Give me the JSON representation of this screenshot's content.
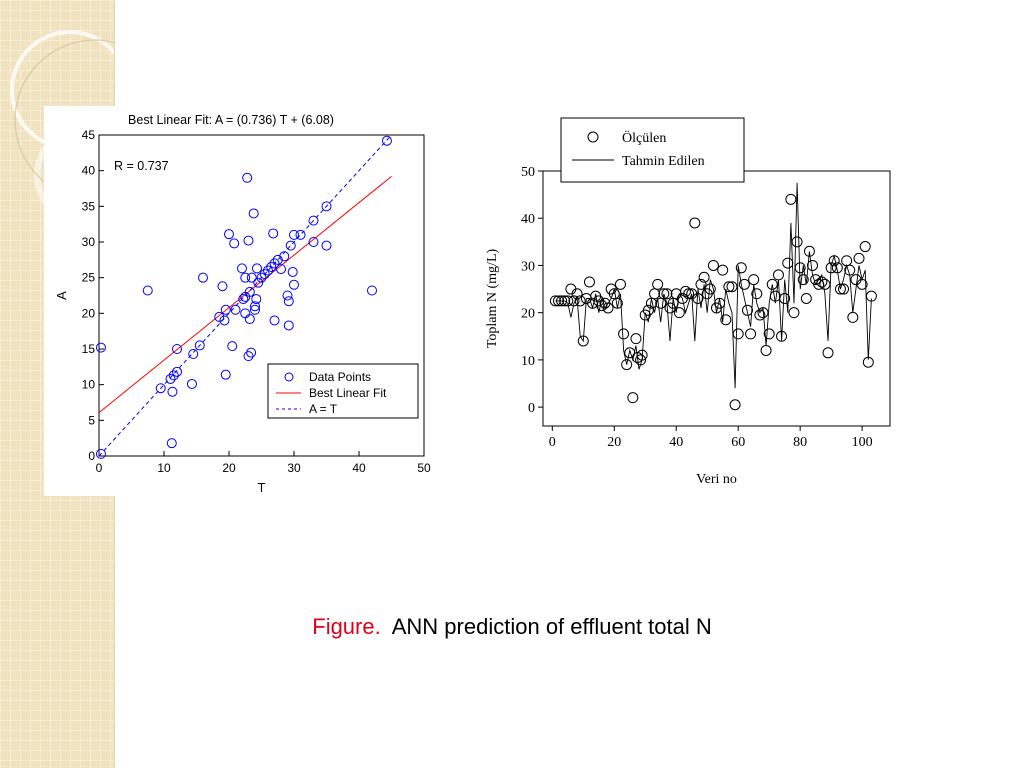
{
  "caption": {
    "label": "Figure.",
    "text": "ANN prediction of effluent total N",
    "label_color": "#e0001a"
  },
  "chart_data": [
    {
      "type": "scatter",
      "title": "Best Linear Fit:  A = (0.736) T + (6.08)",
      "annotation": "R = 0.737",
      "xlabel": "T",
      "ylabel": "A",
      "xlim": [
        0,
        50
      ],
      "ylim": [
        0,
        45
      ],
      "xticks": [
        0,
        10,
        20,
        30,
        40,
        50
      ],
      "yticks": [
        0,
        5,
        10,
        15,
        20,
        25,
        30,
        35,
        40,
        45
      ],
      "grid": false,
      "legend_position": "bottom-right",
      "colors": {
        "points": "#0000ff",
        "fit": "#ff0000",
        "identity": "#0000ff"
      },
      "series": [
        {
          "name": "Data Points",
          "kind": "scatter",
          "points": [
            [
              0.3,
              0.3
            ],
            [
              0.3,
              15.2
            ],
            [
              7.5,
              23.2
            ],
            [
              9.5,
              9.5
            ],
            [
              11,
              10.8
            ],
            [
              11.5,
              11.3
            ],
            [
              11.3,
              9
            ],
            [
              11.2,
              1.8
            ],
            [
              12,
              15
            ],
            [
              12,
              11.8
            ],
            [
              14.5,
              14.3
            ],
            [
              14.3,
              10.1
            ],
            [
              15.5,
              15.5
            ],
            [
              16,
              25
            ],
            [
              18.5,
              19.5
            ],
            [
              19,
              23.8
            ],
            [
              19.5,
              11.4
            ],
            [
              19.5,
              20.5
            ],
            [
              19.3,
              19
            ],
            [
              20,
              31.1
            ],
            [
              20.5,
              15.4
            ],
            [
              20.8,
              29.8
            ],
            [
              21,
              20.5
            ],
            [
              22,
              26.3
            ],
            [
              22.2,
              22
            ],
            [
              22.5,
              25
            ],
            [
              22.5,
              22.3
            ],
            [
              22.5,
              20
            ],
            [
              22.8,
              39
            ],
            [
              23,
              30.2
            ],
            [
              23,
              14
            ],
            [
              23.2,
              19.2
            ],
            [
              23.4,
              14.5
            ],
            [
              23.2,
              23
            ],
            [
              23.5,
              25
            ],
            [
              23.8,
              34
            ],
            [
              24,
              20.5
            ],
            [
              24,
              21
            ],
            [
              24.2,
              22
            ],
            [
              24.3,
              26.3
            ],
            [
              24.5,
              24.3
            ],
            [
              25,
              25
            ],
            [
              25.5,
              25.5
            ],
            [
              26,
              26
            ],
            [
              26.5,
              26.5
            ],
            [
              26.8,
              31.2
            ],
            [
              27,
              19
            ],
            [
              27,
              27
            ],
            [
              27.5,
              27.5
            ],
            [
              28,
              26.2
            ],
            [
              28.5,
              28
            ],
            [
              29,
              22.5
            ],
            [
              29.2,
              21.7
            ],
            [
              29.2,
              18.3
            ],
            [
              29.5,
              29.5
            ],
            [
              30,
              31
            ],
            [
              29.8,
              25.8
            ],
            [
              30,
              24
            ],
            [
              31,
              31
            ],
            [
              33,
              33
            ],
            [
              33,
              30
            ],
            [
              35,
              29.5
            ],
            [
              35,
              35
            ],
            [
              42,
              23.2
            ],
            [
              44.3,
              44.2
            ]
          ]
        },
        {
          "name": "Best Linear Fit",
          "kind": "line",
          "slope": 0.736,
          "intercept": 6.08
        },
        {
          "name": "A = T",
          "kind": "line",
          "slope": 1,
          "intercept": 0,
          "dashed": true
        }
      ]
    },
    {
      "type": "line",
      "xlabel": "Veri no",
      "ylabel": "Toplam N (mg/L)",
      "xlim": [
        -3,
        109
      ],
      "ylim": [
        -4,
        50
      ],
      "xticks": [
        0,
        20,
        40,
        60,
        80,
        100
      ],
      "yticks": [
        0,
        10,
        20,
        30,
        40,
        50
      ],
      "grid": false,
      "legend_position": "top",
      "series": [
        {
          "name": "Ölçülen",
          "kind": "markers",
          "points": [
            [
              1,
              22.5
            ],
            [
              2,
              22.5
            ],
            [
              3,
              22.5
            ],
            [
              4,
              22.5
            ],
            [
              5,
              22.5
            ],
            [
              6,
              25
            ],
            [
              7,
              22.5
            ],
            [
              8,
              24
            ],
            [
              9,
              22.5
            ],
            [
              10,
              14
            ],
            [
              11,
              23
            ],
            [
              12,
              26.5
            ],
            [
              13,
              22
            ],
            [
              14,
              23.5
            ],
            [
              15,
              22.5
            ],
            [
              16,
              21.5
            ],
            [
              17,
              22
            ],
            [
              18,
              21
            ],
            [
              19,
              25
            ],
            [
              20,
              24
            ],
            [
              21,
              22
            ],
            [
              22,
              26
            ],
            [
              23,
              15.5
            ],
            [
              24,
              9
            ],
            [
              25,
              11.5
            ],
            [
              26,
              2
            ],
            [
              27,
              14.5
            ],
            [
              27.5,
              10.5
            ],
            [
              28.5,
              10
            ],
            [
              29,
              11
            ],
            [
              30,
              19.5
            ],
            [
              31,
              20.5
            ],
            [
              32,
              22
            ],
            [
              33,
              24
            ],
            [
              34,
              26
            ],
            [
              35,
              22
            ],
            [
              36,
              24
            ],
            [
              37,
              24
            ],
            [
              38,
              21
            ],
            [
              39,
              22
            ],
            [
              40,
              24
            ],
            [
              41,
              20
            ],
            [
              42,
              23
            ],
            [
              43,
              24.5
            ],
            [
              44,
              24
            ],
            [
              45,
              24
            ],
            [
              46,
              39
            ],
            [
              47,
              23
            ],
            [
              48,
              26
            ],
            [
              49,
              27.5
            ],
            [
              50,
              24
            ],
            [
              51,
              25
            ],
            [
              52,
              30
            ],
            [
              53,
              21
            ],
            [
              54,
              22
            ],
            [
              55,
              29
            ],
            [
              56,
              18.5
            ],
            [
              57,
              25.5
            ],
            [
              58,
              25.5
            ],
            [
              59,
              0.5
            ],
            [
              60,
              15.5
            ],
            [
              61,
              29.5
            ],
            [
              62,
              26
            ],
            [
              63,
              20.5
            ],
            [
              64,
              15.5
            ],
            [
              65,
              27
            ],
            [
              66,
              24
            ],
            [
              67,
              19.5
            ],
            [
              68,
              20
            ],
            [
              69,
              12
            ],
            [
              70,
              15.5
            ],
            [
              71,
              26
            ],
            [
              72,
              23.5
            ],
            [
              73,
              28
            ],
            [
              74,
              15
            ],
            [
              75,
              23
            ],
            [
              76,
              30.5
            ],
            [
              77,
              44
            ],
            [
              78,
              20
            ],
            [
              79,
              35
            ],
            [
              80,
              29.5
            ],
            [
              81,
              27
            ],
            [
              82,
              23
            ],
            [
              83,
              33
            ],
            [
              84,
              30
            ],
            [
              85,
              27
            ],
            [
              86,
              26
            ],
            [
              87,
              26.5
            ],
            [
              88,
              26
            ],
            [
              89,
              11.5
            ],
            [
              90,
              29.5
            ],
            [
              91,
              31
            ],
            [
              92,
              29.5
            ],
            [
              93,
              25
            ],
            [
              94,
              25
            ],
            [
              95,
              31
            ],
            [
              96,
              29
            ],
            [
              97,
              19
            ],
            [
              98,
              27
            ],
            [
              99,
              31.5
            ],
            [
              100,
              26
            ],
            [
              101,
              34
            ],
            [
              102,
              9.5
            ],
            [
              103,
              23.5
            ]
          ]
        },
        {
          "name": "Tahmin Edilen",
          "kind": "line",
          "points": [
            [
              1,
              22.5
            ],
            [
              2,
              22.5
            ],
            [
              3,
              22.5
            ],
            [
              4,
              22.5
            ],
            [
              5,
              22
            ],
            [
              6,
              19
            ],
            [
              7,
              22
            ],
            [
              8,
              23
            ],
            [
              9,
              15
            ],
            [
              10,
              14
            ],
            [
              11,
              23
            ],
            [
              12,
              23
            ],
            [
              13,
              21
            ],
            [
              14,
              24
            ],
            [
              15,
              20
            ],
            [
              16,
              23
            ],
            [
              17,
              21
            ],
            [
              18,
              22
            ],
            [
              19,
              23
            ],
            [
              20,
              25
            ],
            [
              21,
              21
            ],
            [
              22,
              24
            ],
            [
              23,
              12
            ],
            [
              24,
              9
            ],
            [
              25,
              12
            ],
            [
              26,
              10
            ],
            [
              27,
              13
            ],
            [
              28,
              8
            ],
            [
              29,
              10
            ],
            [
              30,
              20
            ],
            [
              31,
              18
            ],
            [
              32,
              23
            ],
            [
              33,
              20
            ],
            [
              34,
              23
            ],
            [
              35,
              18
            ],
            [
              36,
              24
            ],
            [
              37,
              22
            ],
            [
              38,
              14
            ],
            [
              39,
              23
            ],
            [
              40,
              20
            ],
            [
              41,
              24
            ],
            [
              42,
              23
            ],
            [
              43,
              20
            ],
            [
              44,
              22
            ],
            [
              45,
              24
            ],
            [
              46,
              14
            ],
            [
              47,
              25
            ],
            [
              48,
              21
            ],
            [
              49,
              26
            ],
            [
              50,
              20
            ],
            [
              51,
              27
            ],
            [
              52,
              25
            ],
            [
              53,
              20
            ],
            [
              54,
              23
            ],
            [
              55,
              18
            ],
            [
              56,
              25
            ],
            [
              57,
              22
            ],
            [
              58,
              20
            ],
            [
              59,
              4
            ],
            [
              60,
              30
            ],
            [
              61,
              26
            ],
            [
              62,
              23
            ],
            [
              63,
              20
            ],
            [
              64,
              17
            ],
            [
              65,
              26
            ],
            [
              66,
              22
            ],
            [
              67,
              20
            ],
            [
              68,
              21
            ],
            [
              69,
              13
            ],
            [
              70,
              22
            ],
            [
              71,
              26
            ],
            [
              72,
              22
            ],
            [
              73,
              27
            ],
            [
              74,
              14
            ],
            [
              75,
              27
            ],
            [
              76,
              20
            ],
            [
              77,
              39
            ],
            [
              78,
              22
            ],
            [
              79,
              47.5
            ],
            [
              80,
              25
            ],
            [
              81,
              30
            ],
            [
              82,
              26
            ],
            [
              83,
              33
            ],
            [
              84,
              28
            ],
            [
              85,
              26
            ],
            [
              86,
              27
            ],
            [
              87,
              28
            ],
            [
              88,
              24
            ],
            [
              89,
              14
            ],
            [
              90,
              30
            ],
            [
              91,
              32
            ],
            [
              92,
              29
            ],
            [
              93,
              25
            ],
            [
              94,
              27
            ],
            [
              95,
              30
            ],
            [
              96,
              28
            ],
            [
              97,
              20
            ],
            [
              98,
              25
            ],
            [
              99,
              30
            ],
            [
              100,
              27
            ],
            [
              101,
              29
            ],
            [
              102,
              10
            ],
            [
              103,
              23
            ]
          ]
        }
      ]
    }
  ]
}
